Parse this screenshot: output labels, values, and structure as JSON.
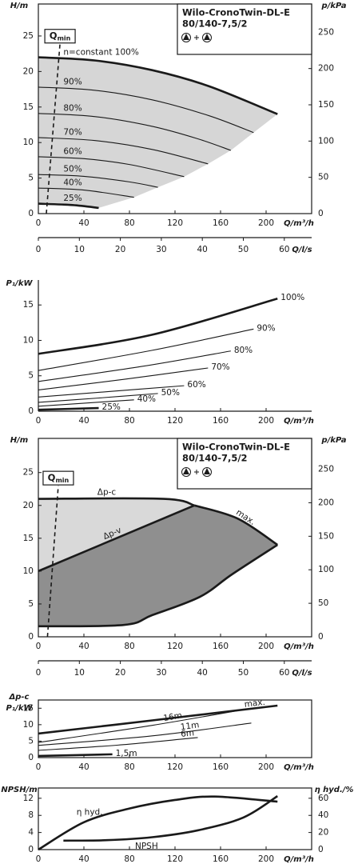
{
  "chart_data": [
    {
      "type": "line",
      "color": "#1a1a1a",
      "fill": "#d6d6d6",
      "y_label": [
        "H/m"
      ],
      "y2_label": "p/kPa",
      "x_label": "Q/m³/h",
      "x2_label": "Q/l/s",
      "title_box": [
        "Wilo-CronoTwin-DL-E",
        "80/140-7,5/2"
      ],
      "xlim": [
        0,
        240
      ],
      "xticks": [
        0,
        40,
        80,
        120,
        160,
        200
      ],
      "x2lim": [
        0,
        66.67
      ],
      "x2ticks": [
        0,
        10,
        20,
        30,
        40,
        50,
        60
      ],
      "ylim": [
        0,
        29.5
      ],
      "yticks": [
        0,
        5,
        10,
        15,
        20,
        25
      ],
      "y2lim": [
        0,
        289
      ],
      "y2ticks": [
        0,
        50,
        100,
        150,
        200,
        250
      ],
      "qmin": {
        "label": "Q",
        "sub": "min",
        "x": [
          7,
          19
        ],
        "y": [
          0,
          23.9
        ]
      },
      "series": [
        {
          "name": "n=constant 100%",
          "bold": true,
          "x": [
            0,
            50,
            100,
            150,
            210
          ],
          "values": [
            22,
            21.55,
            20.19,
            17.92,
            14
          ]
        },
        {
          "name": "90%",
          "x": [
            0,
            50,
            100,
            150,
            189
          ],
          "values": [
            17.8,
            17.35,
            16.01,
            13.77,
            11.4
          ]
        },
        {
          "name": "80%",
          "x": [
            0,
            50,
            100,
            140,
            169
          ],
          "values": [
            14.1,
            13.65,
            12.28,
            10.53,
            8.9
          ]
        },
        {
          "name": "70%",
          "x": [
            0,
            50,
            100,
            149
          ],
          "values": [
            10.7,
            10.28,
            9.03,
            7.0
          ]
        },
        {
          "name": "60%",
          "x": [
            0,
            40,
            80,
            128
          ],
          "values": [
            8.0,
            7.73,
            6.91,
            5.2
          ]
        },
        {
          "name": "50%",
          "x": [
            0,
            40,
            80,
            105
          ],
          "values": [
            5.5,
            5.24,
            4.46,
            3.7
          ]
        },
        {
          "name": "40%",
          "x": [
            0,
            40,
            84
          ],
          "values": [
            3.6,
            3.31,
            2.3
          ]
        },
        {
          "name": "25%",
          "bold": true,
          "x": [
            0,
            30,
            53
          ],
          "values": [
            1.4,
            1.2,
            0.8
          ]
        }
      ]
    },
    {
      "type": "line",
      "color": "#1a1a1a",
      "y_label": [
        "P₁/kW"
      ],
      "x_label": "Q/m³/h",
      "xlim": [
        0,
        240
      ],
      "xticks": [
        0,
        40,
        80,
        120,
        160,
        200
      ],
      "ylim": [
        0,
        18.3
      ],
      "yticks": [
        0,
        5,
        10,
        15
      ],
      "series": [
        {
          "name": "100%",
          "bold": true,
          "x": [
            0,
            100,
            210
          ],
          "values": [
            8.1,
            10.8,
            15.9
          ]
        },
        {
          "name": "90%",
          "x": [
            0,
            100,
            189
          ],
          "values": [
            5.75,
            8.6,
            11.6
          ]
        },
        {
          "name": "80%",
          "x": [
            0,
            90,
            169
          ],
          "values": [
            4.2,
            6.3,
            8.5
          ]
        },
        {
          "name": "70%",
          "x": [
            0,
            75,
            149
          ],
          "values": [
            3.0,
            4.5,
            6.1
          ]
        },
        {
          "name": "60%",
          "x": [
            0,
            64,
            128
          ],
          "values": [
            2.0,
            2.8,
            3.6
          ]
        },
        {
          "name": "50%",
          "x": [
            0,
            52,
            105
          ],
          "values": [
            1.25,
            1.85,
            2.5
          ]
        },
        {
          "name": "40%",
          "x": [
            0,
            42,
            84
          ],
          "values": [
            0.7,
            1.15,
            1.6
          ]
        },
        {
          "name": "25%",
          "bold": true,
          "x": [
            0,
            53
          ],
          "values": [
            0.2,
            0.45
          ]
        }
      ]
    },
    {
      "type": "line",
      "color": "#1a1a1a",
      "fills": [
        "#d9d9d9",
        "#8f8f8f"
      ],
      "y_label": [
        "H/m"
      ],
      "y2_label": "p/kPa",
      "x_label": "Q/m³/h",
      "x2_label": "Q/l/s",
      "title_box": [
        "Wilo-CronoTwin-DL-E",
        "80/140-7,5/2"
      ],
      "xlim": [
        0,
        240
      ],
      "xticks": [
        0,
        40,
        80,
        120,
        160,
        200
      ],
      "x2lim": [
        0,
        66.67
      ],
      "x2ticks": [
        0,
        10,
        20,
        30,
        40,
        50,
        60
      ],
      "ylim": [
        0,
        30.2
      ],
      "yticks": [
        0,
        5,
        10,
        15,
        20,
        25
      ],
      "y2lim": [
        0,
        296
      ],
      "y2ticks": [
        0,
        50,
        100,
        150,
        200,
        250
      ],
      "qmin": {
        "label": "Q",
        "sub": "min",
        "x": [
          8,
          17.5
        ],
        "y": [
          0,
          23
        ]
      },
      "series": [
        {
          "name": "Δp-c",
          "bold": true,
          "x": [
            0,
            110,
            137
          ],
          "values": [
            21,
            21,
            20
          ]
        },
        {
          "name": "Δp-v",
          "bold": true,
          "x": [
            0,
            137
          ],
          "values": [
            10,
            20
          ]
        },
        {
          "name": "max.",
          "bold": true,
          "x": [
            137,
            175,
            210
          ],
          "values": [
            20,
            18,
            14
          ]
        },
        {
          "bold": true,
          "x": [
            210,
            170,
            142,
            100,
            75,
            0
          ],
          "values": [
            14,
            9.5,
            6.1,
            3.3,
            1.8,
            1.6
          ]
        }
      ]
    },
    {
      "type": "line",
      "color": "#1a1a1a",
      "y_label": [
        "Δp-c",
        "P₁/kW"
      ],
      "x_label": "Q/m³/h",
      "xlim": [
        0,
        240
      ],
      "xticks": [
        0,
        40,
        80,
        120,
        160,
        200
      ],
      "ylim": [
        0,
        17.5
      ],
      "yticks": [
        0,
        5,
        10,
        15
      ],
      "series": [
        {
          "name": "max.",
          "bold": true,
          "x": [
            0,
            100,
            210
          ],
          "values": [
            7.3,
            11.3,
            15.8
          ]
        },
        {
          "name": "16m",
          "x": [
            0,
            100,
            187
          ],
          "values": [
            4.6,
            9.8,
            15
          ]
        },
        {
          "name": "11m",
          "x": [
            0,
            100,
            187
          ],
          "values": [
            3.7,
            6.6,
            10.5
          ]
        },
        {
          "name": "6m",
          "x": [
            0,
            70,
            140
          ],
          "values": [
            2.2,
            3.8,
            6.1
          ]
        },
        {
          "name": "1,5m",
          "bold": true,
          "x": [
            0,
            65
          ],
          "values": [
            0.5,
            1.0
          ]
        }
      ]
    },
    {
      "type": "line",
      "color": "#1a1a1a",
      "y_label": [
        "NPSH/m"
      ],
      "y2_label": "η hyd./%",
      "x_label": "Q/m³/h",
      "xlim": [
        0,
        240
      ],
      "xticks": [
        0,
        40,
        80,
        120,
        160,
        200
      ],
      "ylim": [
        0,
        14.4
      ],
      "yticks": [
        0,
        4,
        8,
        12
      ],
      "y2lim": [
        0,
        72
      ],
      "y2ticks": [
        0,
        20,
        40,
        60
      ],
      "series": [
        {
          "name": "η hyd.",
          "bold": true,
          "axis": "y2",
          "x": [
            0,
            40,
            80,
            120,
            155,
            210
          ],
          "values": [
            0,
            32,
            48,
            58,
            62,
            56
          ]
        },
        {
          "name": "NPSH",
          "bold": true,
          "x": [
            22,
            60,
            100,
            140,
            180,
            210
          ],
          "values": [
            2.1,
            2.2,
            2.9,
            4.5,
            7.5,
            12.5
          ]
        }
      ]
    }
  ]
}
